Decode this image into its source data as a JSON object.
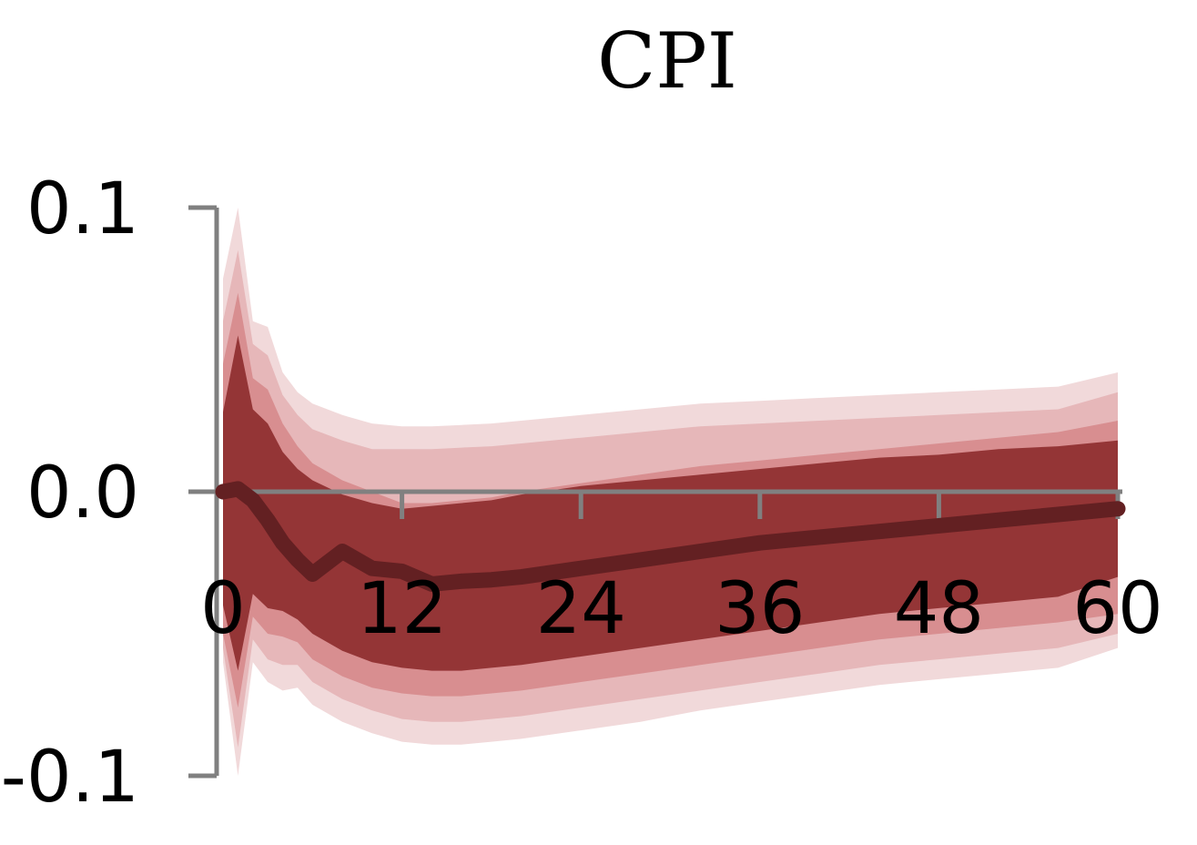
{
  "chart_data": {
    "type": "area",
    "title": "CPI",
    "xlabel": "",
    "ylabel": "",
    "xlim": [
      0,
      60
    ],
    "ylim": [
      -0.1,
      0.1
    ],
    "x_ticks": [
      0,
      12,
      24,
      36,
      48,
      60
    ],
    "y_ticks": [
      -0.1,
      0.0,
      0.1
    ],
    "x_tick_labels": [
      "0",
      "12",
      "24",
      "36",
      "48",
      "60"
    ],
    "y_tick_labels": [
      "-0.1",
      "0.0",
      "0.1"
    ],
    "grid": false,
    "legend": "none",
    "colors": {
      "band_outer": "#f1d9da",
      "band_mid": "#e6b7b9",
      "band_inner": "#d88e90",
      "band_core": "#943536",
      "median_line": "#632022",
      "axis": "#808080"
    },
    "x": [
      0,
      1,
      2,
      3,
      4,
      5,
      6,
      8,
      10,
      12,
      14,
      16,
      18,
      20,
      24,
      28,
      32,
      36,
      40,
      44,
      48,
      52,
      56,
      60
    ],
    "median": [
      0.0,
      0.001,
      -0.003,
      -0.01,
      -0.018,
      -0.024,
      -0.029,
      -0.021,
      -0.027,
      -0.028,
      -0.0325,
      -0.0315,
      -0.031,
      -0.03,
      -0.027,
      -0.024,
      -0.021,
      -0.018,
      -0.016,
      -0.014,
      -0.012,
      -0.01,
      -0.008,
      -0.006
    ],
    "bands": [
      {
        "level": "outer",
        "upper": [
          0.075,
          0.1,
          0.06,
          0.058,
          0.042,
          0.035,
          0.031,
          0.027,
          0.024,
          0.023,
          0.023,
          0.0235,
          0.024,
          0.025,
          0.027,
          0.029,
          0.031,
          0.032,
          0.033,
          0.034,
          0.035,
          0.036,
          0.037,
          0.042
        ],
        "lower": [
          -0.06,
          -0.1,
          -0.06,
          -0.067,
          -0.07,
          -0.069,
          -0.075,
          -0.081,
          -0.085,
          -0.088,
          -0.089,
          -0.089,
          -0.088,
          -0.087,
          -0.084,
          -0.081,
          -0.077,
          -0.074,
          -0.071,
          -0.068,
          -0.066,
          -0.064,
          -0.062,
          -0.055
        ]
      },
      {
        "level": "mid",
        "upper": [
          0.06,
          0.085,
          0.052,
          0.048,
          0.034,
          0.027,
          0.022,
          0.018,
          0.015,
          0.015,
          0.015,
          0.0155,
          0.016,
          0.017,
          0.019,
          0.021,
          0.023,
          0.024,
          0.025,
          0.026,
          0.027,
          0.028,
          0.029,
          0.035
        ],
        "lower": [
          -0.055,
          -0.09,
          -0.052,
          -0.059,
          -0.061,
          -0.061,
          -0.067,
          -0.073,
          -0.077,
          -0.08,
          -0.081,
          -0.081,
          -0.08,
          -0.079,
          -0.076,
          -0.073,
          -0.07,
          -0.067,
          -0.064,
          -0.061,
          -0.059,
          -0.057,
          -0.055,
          -0.05
        ]
      },
      {
        "level": "inner",
        "upper": [
          0.045,
          0.07,
          0.04,
          0.036,
          0.024,
          0.016,
          0.01,
          0.004,
          0.0,
          -0.004,
          -0.004,
          -0.003,
          -0.002,
          0.0,
          0.003,
          0.006,
          0.009,
          0.011,
          0.013,
          0.015,
          0.017,
          0.019,
          0.021,
          0.025
        ],
        "lower": [
          -0.05,
          -0.076,
          -0.044,
          -0.05,
          -0.051,
          -0.053,
          -0.059,
          -0.065,
          -0.069,
          -0.071,
          -0.072,
          -0.072,
          -0.071,
          -0.07,
          -0.067,
          -0.064,
          -0.061,
          -0.058,
          -0.055,
          -0.052,
          -0.05,
          -0.048,
          -0.046,
          -0.043
        ]
      },
      {
        "level": "core",
        "upper": [
          0.028,
          0.055,
          0.029,
          0.024,
          0.014,
          0.008,
          0.004,
          -0.001,
          -0.004,
          -0.006,
          -0.005,
          -0.004,
          -0.003,
          -0.001,
          0.002,
          0.004,
          0.006,
          0.008,
          0.01,
          0.012,
          0.013,
          0.015,
          0.016,
          0.018
        ],
        "lower": [
          -0.04,
          -0.063,
          -0.036,
          -0.041,
          -0.042,
          -0.045,
          -0.05,
          -0.056,
          -0.06,
          -0.062,
          -0.063,
          -0.063,
          -0.062,
          -0.061,
          -0.058,
          -0.055,
          -0.052,
          -0.049,
          -0.046,
          -0.043,
          -0.041,
          -0.039,
          -0.037,
          -0.03
        ]
      }
    ]
  }
}
